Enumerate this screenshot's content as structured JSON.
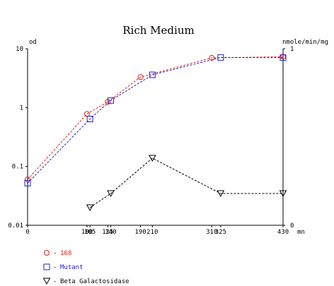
{
  "chart_data": {
    "type": "line",
    "title": "Rich Medium",
    "left_axis": {
      "label": "od",
      "scale": "log",
      "range": [
        0.01,
        10
      ],
      "ticks": [
        {
          "value": 10,
          "label": "10"
        },
        {
          "value": 1,
          "label": "1"
        },
        {
          "value": 0.1,
          "label": "0.1"
        },
        {
          "value": 0.01,
          "label": "0.01"
        }
      ]
    },
    "right_axis": {
      "label": "nmole/min/mg",
      "scale": "linear",
      "range": [
        0,
        1
      ],
      "ticks": [
        {
          "value": 1,
          "label": "1"
        },
        {
          "value": 0,
          "label": "0"
        }
      ]
    },
    "x_axis": {
      "unit": "mn",
      "range": [
        0,
        430
      ],
      "ticks": [
        {
          "value": 0,
          "label": "0"
        },
        {
          "value": 100,
          "label": "100"
        },
        {
          "value": 105,
          "label": "105"
        },
        {
          "value": 135,
          "label": "135"
        },
        {
          "value": 140,
          "label": "140"
        },
        {
          "value": 190,
          "label": "190"
        },
        {
          "value": 210,
          "label": "210"
        },
        {
          "value": 310,
          "label": "310"
        },
        {
          "value": 325,
          "label": "325"
        },
        {
          "value": 430,
          "label": "430"
        }
      ]
    },
    "series": [
      {
        "name": "168",
        "color": "#e02020",
        "marker": "circle",
        "axis": "left",
        "points": [
          [
            0,
            0.06
          ],
          [
            100,
            0.78
          ],
          [
            135,
            1.25
          ],
          [
            190,
            3.3
          ],
          [
            310,
            7.0
          ],
          [
            430,
            7.3
          ]
        ]
      },
      {
        "name": "Mutant",
        "color": "#2020c8",
        "marker": "square",
        "axis": "left",
        "points": [
          [
            0,
            0.052
          ],
          [
            105,
            0.64
          ],
          [
            140,
            1.32
          ],
          [
            210,
            3.6
          ],
          [
            325,
            7.1
          ],
          [
            430,
            7.05
          ]
        ]
      },
      {
        "name": "Beta Galactosidase",
        "color": "#000000",
        "marker": "triangle-down",
        "axis": "right",
        "points": [
          [
            105,
            0.1
          ],
          [
            140,
            0.18
          ],
          [
            210,
            0.38
          ],
          [
            325,
            0.18
          ],
          [
            430,
            0.18
          ]
        ]
      }
    ],
    "grid": false,
    "legend_position": "bottom-left"
  }
}
